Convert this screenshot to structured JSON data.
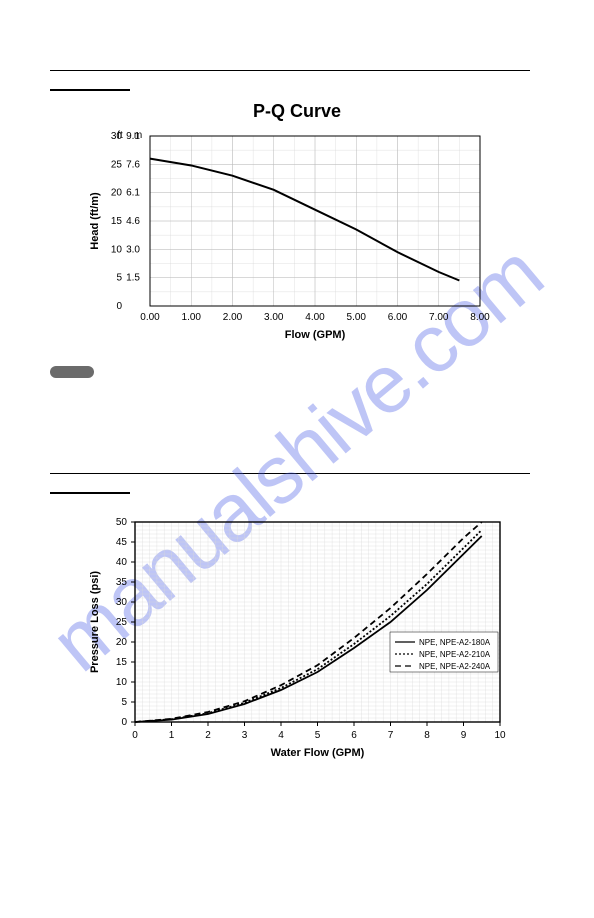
{
  "watermark": "manualshive.com",
  "pill_label": " ",
  "chart1": {
    "type": "line",
    "title": "P-Q Curve",
    "xlabel": "Flow (GPM)",
    "ylabel": "Head (ft/m)",
    "x_ticks": [
      "0.00",
      "1.00",
      "2.00",
      "3.00",
      "4.00",
      "5.00",
      "6.00",
      "7.00",
      "8.00"
    ],
    "y_ticks_ft": [
      "0",
      "5",
      "10",
      "15",
      "20",
      "25",
      "30"
    ],
    "y_ticks_m": [
      "",
      "1.5",
      "3.0",
      "4.6",
      "6.1",
      "7.6",
      "9.1"
    ],
    "y_header_ft": "ft",
    "y_header_m": "m",
    "xlim": [
      0,
      8
    ],
    "ylim": [
      0,
      30
    ],
    "series": {
      "x": [
        0.0,
        1.0,
        2.0,
        3.0,
        4.0,
        5.0,
        6.0,
        7.0,
        7.5
      ],
      "y": [
        26.0,
        24.8,
        23.0,
        20.5,
        17.0,
        13.5,
        9.5,
        6.0,
        4.5
      ],
      "color": "#000000",
      "width": 2
    },
    "grid_color": "#b8b8b8",
    "background_color": "#ffffff"
  },
  "chart2": {
    "type": "line",
    "xlabel": "Water Flow (GPM)",
    "ylabel": "Pressure Loss (psi)",
    "x_ticks": [
      "0",
      "1",
      "2",
      "3",
      "4",
      "5",
      "6",
      "7",
      "8",
      "9",
      "10"
    ],
    "y_ticks": [
      "0",
      "5",
      "10",
      "15",
      "20",
      "25",
      "30",
      "35",
      "40",
      "45",
      "50"
    ],
    "xlim": [
      0,
      10
    ],
    "ylim": [
      0,
      50
    ],
    "grid_color": "#d8d8d8",
    "legend": {
      "position": "right-middle",
      "items": [
        {
          "label": "NPE, NPE-A2-180A",
          "dash": "solid"
        },
        {
          "label": "NPE, NPE-A2-210A",
          "dash": "dot"
        },
        {
          "label": "NPE, NPE-A2-240A",
          "dash": "dash"
        }
      ]
    },
    "series": [
      {
        "name": "NPE, NPE-A2-180A",
        "dash": "solid",
        "width": 1.8,
        "color": "#000000",
        "x": [
          0,
          1,
          2,
          3,
          4,
          5,
          6,
          7,
          8,
          8.5,
          9,
          9.5
        ],
        "y": [
          0,
          0.6,
          2,
          4.5,
          8,
          12.5,
          18.5,
          25,
          33,
          37.5,
          42,
          46.5
        ]
      },
      {
        "name": "NPE, NPE-A2-210A",
        "dash": "dot",
        "width": 1.8,
        "color": "#000000",
        "x": [
          0,
          1,
          2,
          3,
          4,
          5,
          6,
          7,
          8,
          8.5,
          9,
          9.5
        ],
        "y": [
          0,
          0.7,
          2.2,
          4.8,
          8.5,
          13.2,
          19.5,
          26.5,
          34.5,
          39,
          43.5,
          48
        ]
      },
      {
        "name": "NPE, NPE-A2-240A",
        "dash": "dash",
        "width": 1.8,
        "color": "#000000",
        "x": [
          0,
          1,
          2,
          3,
          4,
          5,
          6,
          7,
          8,
          8.5,
          9,
          9.5
        ],
        "y": [
          0,
          0.8,
          2.5,
          5.2,
          9.2,
          14.2,
          21,
          28.5,
          37,
          41.5,
          46,
          50
        ]
      }
    ]
  }
}
